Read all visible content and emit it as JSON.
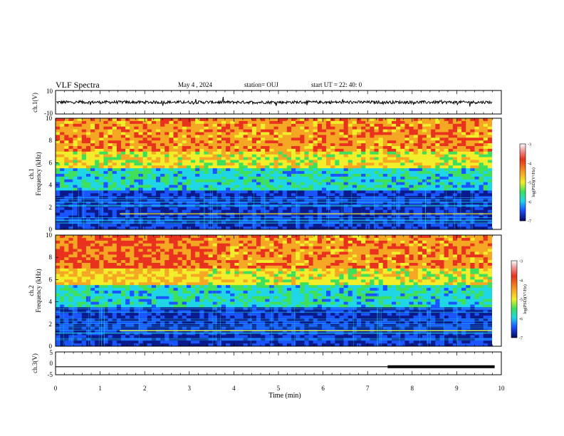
{
  "header": {
    "title": "VLF Spectra",
    "date": "May 4 , 2024",
    "station": "station= OUJ",
    "start": "start  UT  =   22: 40: 0"
  },
  "chart_data": [
    {
      "type": "line",
      "title": "",
      "ylabel": "ch.1(V)",
      "ylim": [
        -10,
        10
      ],
      "yticks": [
        "10",
        "-10"
      ],
      "xlim": [
        0,
        10
      ],
      "description_values": {
        "baseline": 0,
        "typical_amplitude": 2.5
      }
    },
    {
      "type": "heatmap",
      "ylabel_line1": "ch.1",
      "ylabel_line2": "Frequency  (kHz)",
      "ylim": [
        0,
        10
      ],
      "yticks": [
        "0",
        "2",
        "4",
        "6",
        "8",
        "10"
      ],
      "xlim": [
        0,
        10
      ],
      "colorbar": {
        "label": "log(PSD)(V²/Hz)",
        "range": [
          -7,
          -3
        ],
        "ticks": [
          "-3",
          "-4",
          "-5",
          "-6",
          "-7"
        ]
      }
    },
    {
      "type": "heatmap",
      "ylabel_line1": "ch.2",
      "ylabel_line2": "Frequency  (kHz)",
      "ylim": [
        0,
        10
      ],
      "yticks": [
        "0",
        "2",
        "4",
        "6",
        "8",
        "10"
      ],
      "xlim": [
        0,
        10
      ],
      "colorbar": {
        "label": "log(PSD)(V²/Hz)",
        "range": [
          -7,
          -3
        ],
        "ticks": [
          "-3",
          "-4",
          "-5",
          "-6",
          "-7"
        ]
      }
    },
    {
      "type": "line",
      "ylabel": "ch.3(V)",
      "ylim": [
        -5,
        5
      ],
      "yticks": [
        "5",
        "0",
        "-5"
      ],
      "xlim": [
        0,
        10
      ],
      "xlabel": "Time  (min)",
      "xticks": [
        "0",
        "1",
        "2",
        "3",
        "4",
        "5",
        "6",
        "7",
        "8",
        "9",
        "10"
      ],
      "x": [
        0,
        7.45,
        7.45,
        9.85
      ],
      "y": [
        -1.5,
        -1.5,
        -1.5,
        -1.5
      ],
      "thick_from": 7.45
    }
  ],
  "colors": {
    "red": "#e8321e",
    "orange": "#f5a623",
    "yellow": "#f2ee2a",
    "green": "#3ee05a",
    "cyan": "#1fd6e6",
    "blue": "#1a54ff",
    "navy": "#0a1a8c",
    "purple": "#6a1aa8"
  }
}
